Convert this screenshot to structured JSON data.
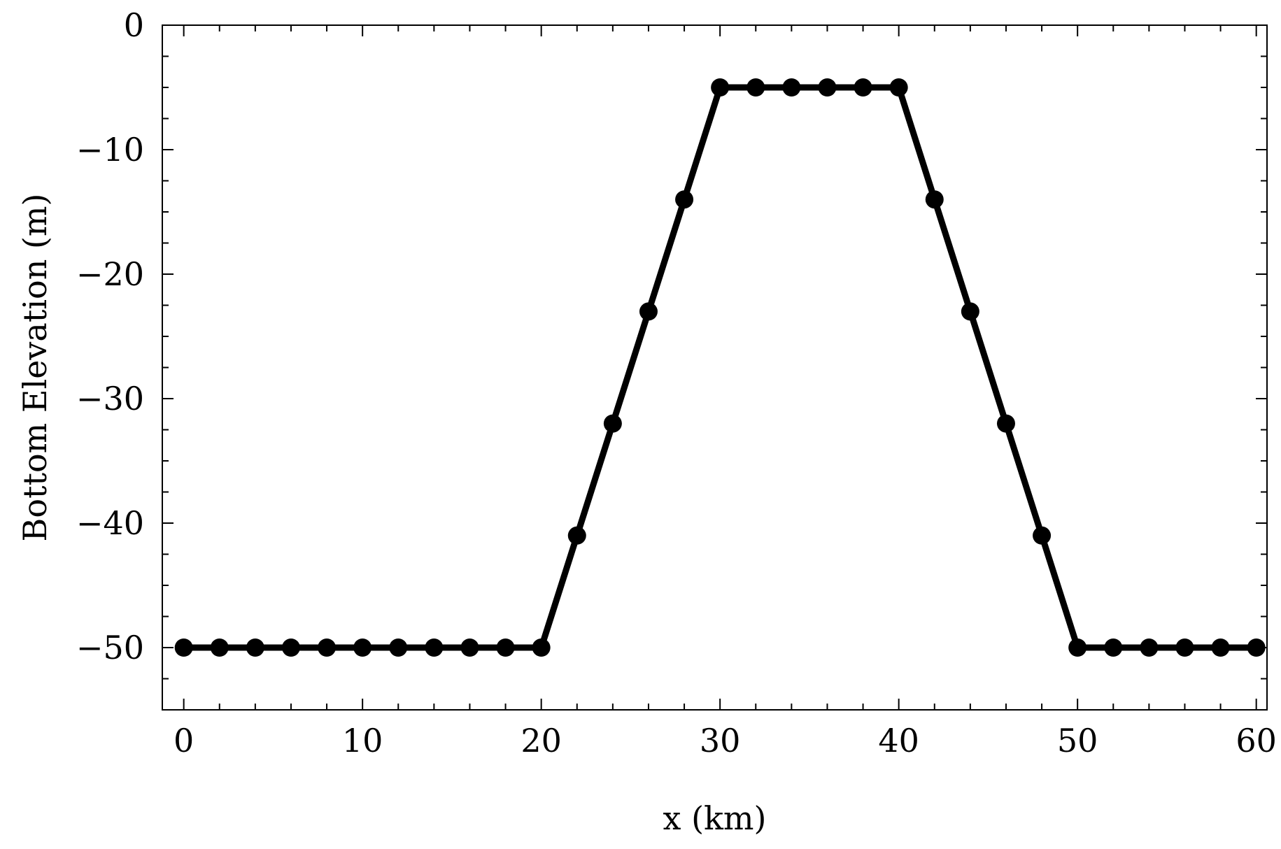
{
  "chart_data": {
    "type": "line",
    "xlabel": "x (km)",
    "ylabel": "Bottom Elevation (m)",
    "xlim": [
      -1.2,
      60.6
    ],
    "ylim": [
      -55,
      0
    ],
    "x_ticks": [
      0,
      10,
      20,
      30,
      40,
      50,
      60
    ],
    "x_tick_labels": [
      "0",
      "10",
      "20",
      "30",
      "40",
      "50",
      "60"
    ],
    "y_ticks": [
      0,
      -10,
      -20,
      -30,
      -40,
      -50
    ],
    "y_tick_labels": [
      "0",
      "−10",
      "−20",
      "−30",
      "−40",
      "−50"
    ],
    "x_minor_step": 2,
    "y_minor_step": 2.5,
    "grid": false,
    "series": [
      {
        "color": "#000000",
        "markers": true,
        "x": [
          0,
          2,
          4,
          6,
          8,
          10,
          12,
          14,
          16,
          18,
          20,
          22,
          24,
          26,
          28,
          30,
          32,
          34,
          36,
          38,
          40,
          42,
          44,
          46,
          48,
          50,
          52,
          54,
          56,
          58,
          60
        ],
        "y": [
          -50,
          -50,
          -50,
          -50,
          -50,
          -50,
          -50,
          -50,
          -50,
          -50,
          -50,
          -41,
          -32,
          -23,
          -14,
          -5,
          -5,
          -5,
          -5,
          -5,
          -5,
          -14,
          -23,
          -32,
          -41,
          -50,
          -50,
          -50,
          -50,
          -50,
          -50
        ]
      }
    ]
  }
}
